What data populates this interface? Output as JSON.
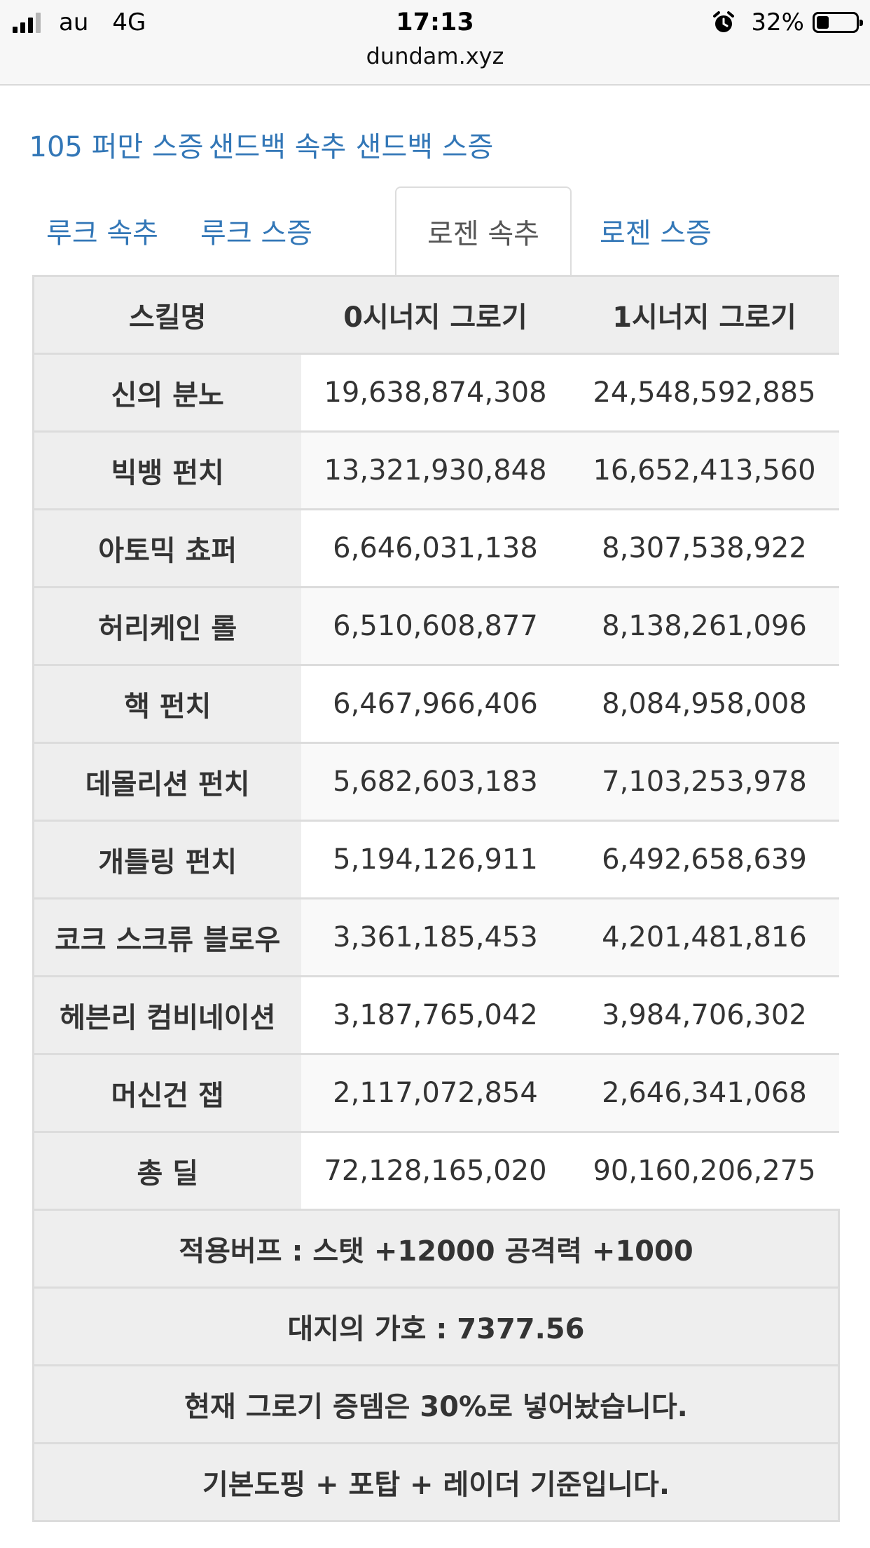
{
  "status_bar": {
    "carrier": "au",
    "network": "4G",
    "time": "17:13",
    "url": "dundam.xyz",
    "battery": "32%",
    "battery_fraction": 0.32,
    "signal_bars_on": 3,
    "icons": [
      "signal-icon",
      "alarm-icon",
      "battery-icon"
    ]
  },
  "tabs": {
    "row1": [
      "105 퍼만 스증",
      "샌드백 속추",
      "샌드백 스증"
    ],
    "row2": [
      "루크 속추",
      "루크 스증",
      "로젠 속추",
      "로젠 스증"
    ],
    "active": "로젠 속추"
  },
  "table": {
    "headers": [
      "스킬명",
      "0시너지 그로기",
      "1시너지 그로기"
    ],
    "rows": [
      {
        "name": "신의 분노",
        "v0": "19,638,874,308",
        "v1": "24,548,592,885"
      },
      {
        "name": "빅뱅 펀치",
        "v0": "13,321,930,848",
        "v1": "16,652,413,560"
      },
      {
        "name": "아토믹 쵸퍼",
        "v0": "6,646,031,138",
        "v1": "8,307,538,922"
      },
      {
        "name": "허리케인 롤",
        "v0": "6,510,608,877",
        "v1": "8,138,261,096"
      },
      {
        "name": "핵 펀치",
        "v0": "6,467,966,406",
        "v1": "8,084,958,008"
      },
      {
        "name": "데몰리션 펀치",
        "v0": "5,682,603,183",
        "v1": "7,103,253,978"
      },
      {
        "name": "개틀링 펀치",
        "v0": "5,194,126,911",
        "v1": "6,492,658,639"
      },
      {
        "name": "코크 스크류 블로우",
        "v0": "3,361,185,453",
        "v1": "4,201,481,816"
      },
      {
        "name": "헤븐리 컴비네이션",
        "v0": "3,187,765,042",
        "v1": "3,984,706,302"
      },
      {
        "name": "머신건 잽",
        "v0": "2,117,072,854",
        "v1": "2,646,341,068"
      },
      {
        "name": "총 딜",
        "v0": "72,128,165,020",
        "v1": "90,160,206,275"
      }
    ],
    "notes": [
      "적용버프 : 스탯 +12000 공격력 +1000",
      "대지의 가호 : 7377.56",
      "현재 그로기 증뎀은 30%로 넣어놨습니다.",
      "기본도핑 + 포탑 + 레이더 기준입니다."
    ]
  },
  "colors": {
    "tab_link": "#3377b7",
    "header_bg": "#eeeeee",
    "border": "#dcdcdc",
    "stripe": "#f9f9f9"
  }
}
